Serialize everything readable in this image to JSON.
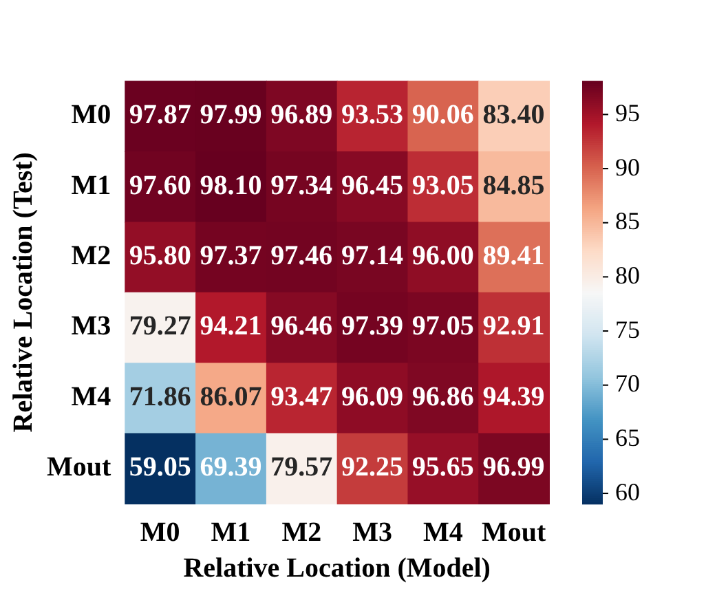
{
  "chart_data": {
    "type": "heatmap",
    "xlabel": "Relative Location (Model)",
    "ylabel": "Relative Location (Test)",
    "categories": [
      "M0",
      "M1",
      "M2",
      "M3",
      "M4",
      "Mout"
    ],
    "y_categories": [
      "M0",
      "M1",
      "M2",
      "M3",
      "M4",
      "Mout"
    ],
    "cells": [
      [
        97.87,
        97.99,
        96.89,
        93.53,
        90.06,
        83.4
      ],
      [
        97.6,
        98.1,
        97.34,
        96.45,
        93.05,
        84.85
      ],
      [
        95.8,
        97.37,
        97.46,
        97.14,
        96.0,
        89.41
      ],
      [
        79.27,
        94.21,
        96.46,
        97.39,
        97.05,
        92.91
      ],
      [
        71.86,
        86.07,
        93.47,
        96.09,
        96.86,
        94.39
      ],
      [
        59.05,
        69.39,
        79.57,
        92.25,
        95.65,
        96.99
      ]
    ],
    "cell_labels": [
      [
        "97.87",
        "97.99",
        "96.89",
        "93.53",
        "90.06",
        "83.40"
      ],
      [
        "97.60",
        "98.10",
        "97.34",
        "96.45",
        "93.05",
        "84.85"
      ],
      [
        "95.80",
        "97.37",
        "97.46",
        "97.14",
        "96.00",
        "89.41"
      ],
      [
        "79.27",
        "94.21",
        "96.46",
        "97.39",
        "97.05",
        "92.91"
      ],
      [
        "71.86",
        "86.07",
        "93.47",
        "96.09",
        "96.86",
        "94.39"
      ],
      [
        "59.05",
        "69.39",
        "79.57",
        "92.25",
        "95.65",
        "96.99"
      ]
    ],
    "clim": [
      59.05,
      98.1
    ],
    "cticks": [
      60,
      65,
      70,
      75,
      80,
      85,
      90,
      95
    ],
    "data_labels": true
  }
}
